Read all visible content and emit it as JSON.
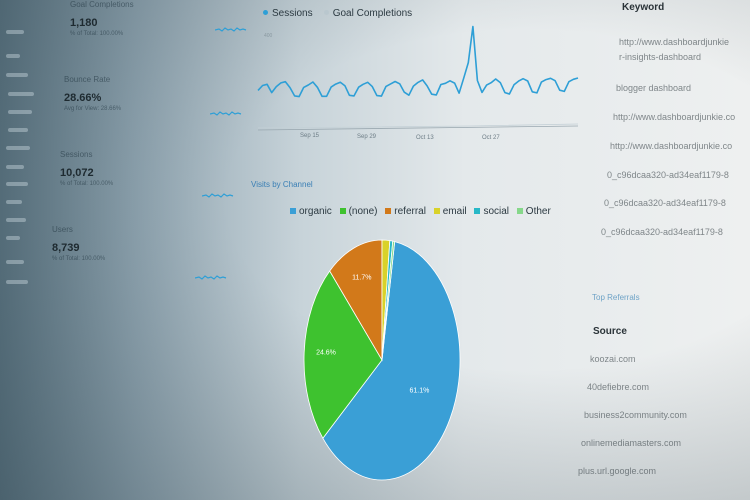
{
  "metrics": [
    {
      "label": "Goal Completions",
      "value": "1,180",
      "sub": "% of Total: 100.00%"
    },
    {
      "label": "Bounce Rate",
      "value": "28.66%",
      "sub": "Avg for View: 28.66%"
    },
    {
      "label": "Sessions",
      "value": "10,072",
      "sub": "% of Total: 100.00%"
    },
    {
      "label": "Users",
      "value": "8,739",
      "sub": "% of Total: 100.00%"
    }
  ],
  "line_chart": {
    "legend": [
      {
        "name": "Sessions",
        "color": "#2e9fd6"
      },
      {
        "name": "Goal Completions",
        "color": "#b9c7ce"
      }
    ],
    "y_max_label": "400",
    "x_ticks": [
      "Sep 15",
      "Sep 29",
      "Oct 13",
      "Oct 27"
    ]
  },
  "pie": {
    "title": "Visits by Channel",
    "legend": [
      {
        "name": "organic",
        "color": "#3a9fd6"
      },
      {
        "name": "(none)",
        "color": "#3ec22f"
      },
      {
        "name": "referral",
        "color": "#d2791a"
      },
      {
        "name": "email",
        "color": "#d9d22a"
      },
      {
        "name": "social",
        "color": "#27b8c7"
      },
      {
        "name": "Other",
        "color": "#86d88a"
      }
    ]
  },
  "chart_data": [
    {
      "type": "line",
      "title": "",
      "x_tick_labels": [
        "Sep 15",
        "Sep 29",
        "Oct 13",
        "Oct 27"
      ],
      "ylim": [
        0,
        400
      ],
      "series": [
        {
          "name": "Sessions",
          "values": [
            140,
            160,
            165,
            130,
            155,
            170,
            175,
            150,
            115,
            112,
            150,
            160,
            172,
            150,
            112,
            112,
            150,
            162,
            170,
            155,
            115,
            112,
            148,
            160,
            168,
            150,
            112,
            110,
            150,
            160,
            170,
            160,
            125,
            112,
            150,
            165,
            175,
            150,
            115,
            112,
            155,
            160,
            170,
            160,
            118,
            180,
            245,
            395,
            170,
            120,
            150,
            160,
            175,
            160,
            118,
            112,
            150,
            165,
            175,
            165,
            120,
            115,
            160,
            170,
            175,
            165,
            125,
            120,
            160,
            170,
            175
          ]
        },
        {
          "name": "Goal Completions",
          "values": []
        }
      ]
    },
    {
      "type": "pie",
      "title": "Visits by Channel",
      "categories": [
        "organic",
        "(none)",
        "referral",
        "email",
        "social",
        "Other"
      ],
      "values": [
        61.1,
        24.6,
        11.7,
        1.6,
        0.6,
        0.4
      ],
      "labels": [
        "61.1%",
        "24.6%",
        "11.7%",
        "",
        "",
        ""
      ]
    }
  ],
  "right_panel": {
    "keyword_header": "Keyword",
    "keywords": [
      "http://www.dashboardjunkie",
      "r-insights-dashboard",
      "blogger dashboard",
      "http://www.dashboardjunkie.co",
      "http://www.dashboardjunkie.co",
      "0_c96dcaa320-ad34eaf1179-8",
      "0_c96dcaa320-ad34eaf1179-8",
      "0_c96dcaa320-ad34eaf1179-8"
    ],
    "referrals_link": "Top Referrals",
    "source_header": "Source",
    "sources": [
      "koozai.com",
      "40defiebre.com",
      "business2community.com",
      "onlinemediamasters.com",
      "plus.url.google.com"
    ]
  }
}
